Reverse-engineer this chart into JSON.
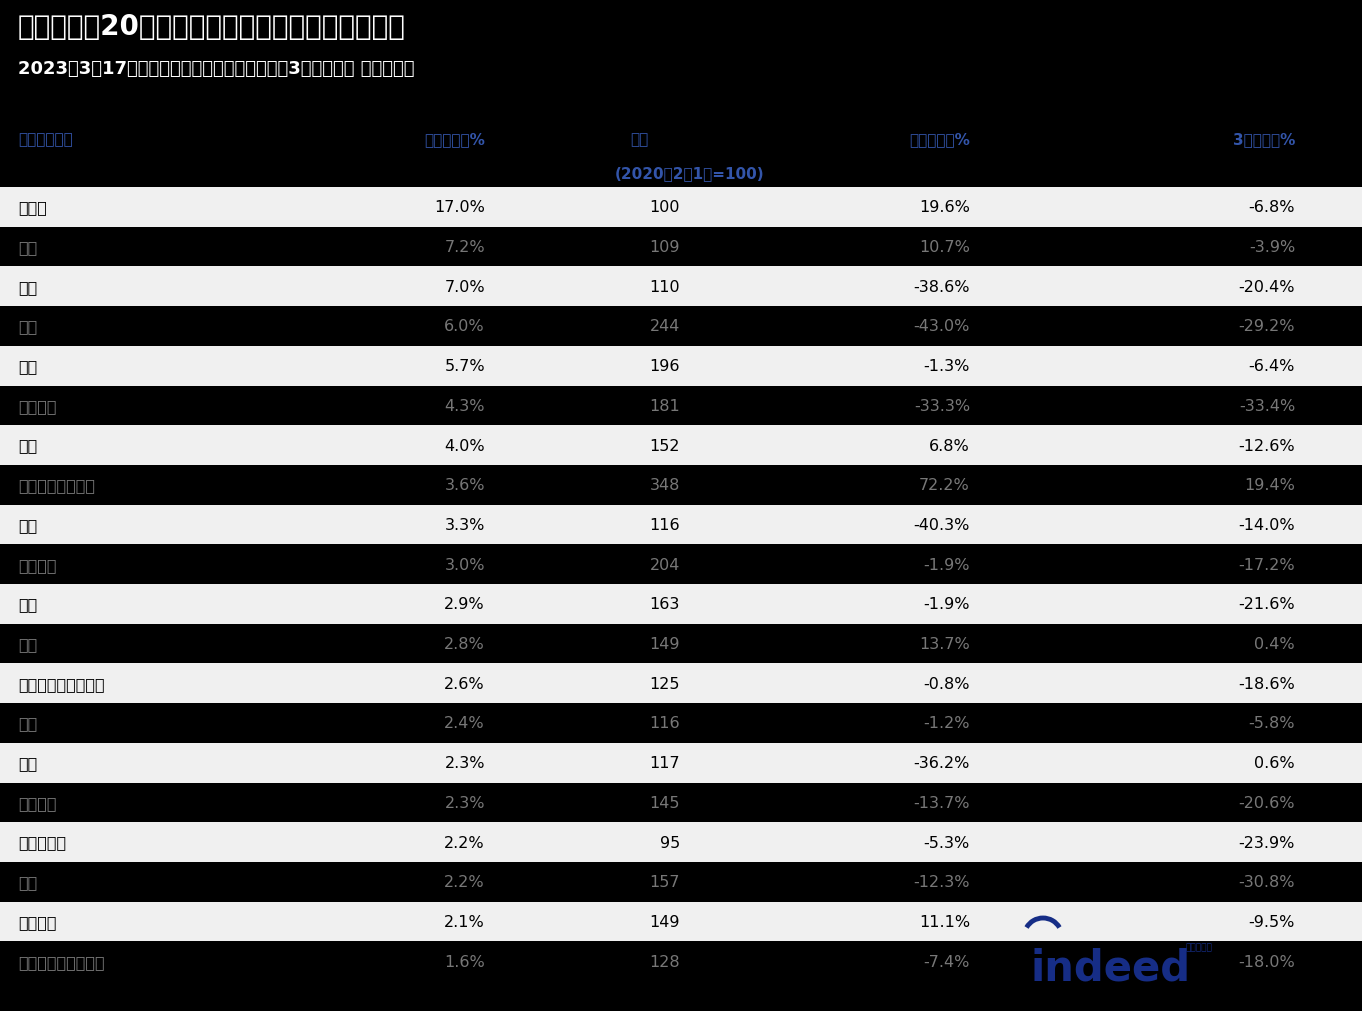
{
  "title": "日本の上位20職種カテゴリにおける求人の変化率",
  "subtitle": "2023年3月17日時点の求人指数、前年同月比、3ヶ月前比、 季節調整値",
  "col_subheader": "(2020年2月1日=100)",
  "rows": [
    [
      "小売り",
      "17.0%",
      "100",
      "19.6%",
      "-6.8%",
      false
    ],
    [
      "飲食",
      "7.2%",
      "109",
      "10.7%",
      "-3.9%",
      true
    ],
    [
      "介護",
      "7.0%",
      "110",
      "-38.6%",
      "-20.4%",
      false
    ],
    [
      "製造",
      "6.0%",
      "244",
      "-43.0%",
      "-29.2%",
      true
    ],
    [
      "運送",
      "5.7%",
      "196",
      "-1.3%",
      "-6.4%",
      false
    ],
    [
      "倉庫管理",
      "4.3%",
      "181",
      "-33.3%",
      "-33.4%",
      true
    ],
    [
      "事務",
      "4.0%",
      "152",
      "6.8%",
      "-12.6%",
      false
    ],
    [
      "ソフトウェア開発",
      "3.6%",
      "348",
      "72.2%",
      "19.4%",
      true
    ],
    [
      "看護",
      "3.3%",
      "116",
      "-40.3%",
      "-14.0%",
      false
    ],
    [
      "機械工学",
      "3.0%",
      "204",
      "-1.9%",
      "-17.2%",
      true
    ],
    [
      "営業",
      "2.9%",
      "163",
      "-1.9%",
      "-21.6%",
      false
    ],
    [
      "経営",
      "2.8%",
      "149",
      "13.7%",
      "0.4%",
      true
    ],
    [
      "クリーニング・清掃",
      "2.6%",
      "125",
      "-0.8%",
      "-18.6%",
      false
    ],
    [
      "教育",
      "2.4%",
      "116",
      "-1.2%",
      "-5.8%",
      true
    ],
    [
      "保育",
      "2.3%",
      "117",
      "-36.2%",
      "0.6%",
      false
    ],
    [
      "設備管理",
      "2.3%",
      "145",
      "-13.7%",
      "-20.6%",
      true
    ],
    [
      "美容・健康",
      "2.2%",
      "95",
      "-5.3%",
      "-23.9%",
      false
    ],
    [
      "建設",
      "2.2%",
      "157",
      "-12.3%",
      "-30.8%",
      true
    ],
    [
      "医療技術",
      "2.1%",
      "149",
      "11.1%",
      "-9.5%",
      false
    ],
    [
      "カスタマーサービス",
      "1.6%",
      "128",
      "-7.4%",
      "-18.0%",
      true
    ]
  ],
  "bg_color": "#000000",
  "row_light_bg": "#f0f0f0",
  "row_dark_bg": "#000000",
  "title_color": "#ffffff",
  "subtitle_color": "#ffffff",
  "header_color": "#3355aa",
  "subheader_color": "#3355aa",
  "row_light_text": "#000000",
  "row_dark_text": "#777777",
  "indeed_blue": "#162d86"
}
